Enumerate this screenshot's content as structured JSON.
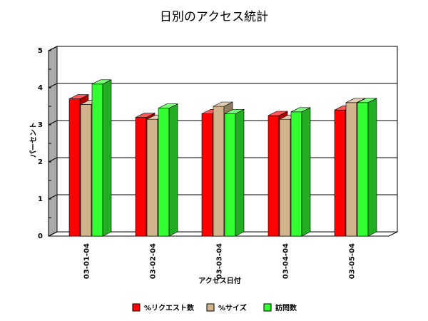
{
  "chart_data": {
    "type": "bar",
    "title": "日別のアクセス統計",
    "xlabel": "アクセス日付",
    "ylabel": "パーセント",
    "categories": [
      "03-01-04",
      "03-02-04",
      "03-03-04",
      "03-04-04",
      "03-05-04"
    ],
    "ylim": [
      0,
      5
    ],
    "yticks": [
      0,
      1,
      2,
      3,
      4,
      5
    ],
    "grid": true,
    "legend_position": "bottom",
    "series": [
      {
        "name": "%リクエスト数",
        "color": "#ff0000",
        "values": [
          3.7,
          3.2,
          3.3,
          3.25,
          3.4
        ]
      },
      {
        "name": "%サイズ",
        "color": "#d2b48c",
        "values": [
          3.55,
          3.15,
          3.5,
          3.15,
          3.6
        ]
      },
      {
        "name": "訪問数",
        "color": "#33ff33",
        "values": [
          4.1,
          3.45,
          3.3,
          3.35,
          3.6
        ]
      }
    ]
  }
}
